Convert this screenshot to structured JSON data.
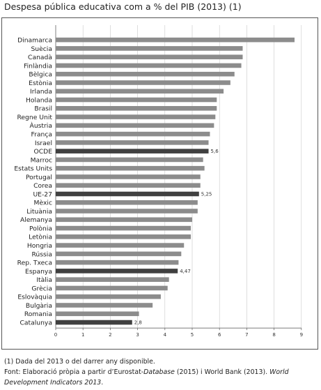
{
  "title": "Despesa pública educativa com a % del PIB (2013) (1)",
  "colors": {
    "bar": "#8c8c8c",
    "highlight": "#404040",
    "axis": "#6a6a6a"
  },
  "chart_data": {
    "type": "bar",
    "orientation": "horizontal",
    "categories": [
      "Dinamarca",
      "Suècia",
      "Canadà",
      "Finlàndia",
      "Bèlgica",
      "Estònia",
      "Irlanda",
      "Holanda",
      "Brasil",
      "Regne Unit",
      "Àustria",
      "França",
      "Israel",
      "OCDE",
      "Marroc",
      "Estats Units",
      "Portugal",
      "Corea",
      "UE-27",
      "Mèxic",
      "Lituània",
      "Alemanya",
      "Polònia",
      "Letònia",
      "Hongria",
      "Rússia",
      "Rep. Txeca",
      "Espanya",
      "Itàlia",
      "Grècia",
      "Eslovàquia",
      "Bulgària",
      "Romania",
      "Catalunya"
    ],
    "values": [
      8.75,
      6.85,
      6.85,
      6.8,
      6.55,
      6.4,
      6.15,
      5.9,
      5.9,
      5.85,
      5.8,
      5.65,
      5.6,
      5.6,
      5.4,
      5.45,
      5.3,
      5.3,
      5.25,
      5.2,
      5.2,
      5.0,
      4.95,
      4.95,
      4.7,
      4.6,
      4.5,
      4.47,
      4.15,
      4.1,
      3.85,
      3.55,
      3.05,
      2.8
    ],
    "highlighted": [
      "OCDE",
      "UE-27",
      "Espanya",
      "Catalunya"
    ],
    "data_labels": [
      {
        "category": "OCDE",
        "text": "5,6"
      },
      {
        "category": "UE-27",
        "text": "5,25"
      },
      {
        "category": "Espanya",
        "text": "4,47"
      },
      {
        "category": "Catalunya",
        "text": "2,8"
      }
    ],
    "xlim": [
      0,
      9
    ],
    "xticks": [
      "0",
      "1",
      "2",
      "3",
      "4",
      "5",
      "6",
      "7",
      "8",
      "9"
    ],
    "grid": "vertical"
  },
  "footnotes": {
    "note1": "(1) Dada del 2013 o del darrer any disponible.",
    "source_a": "Font: Elaboració pròpia a partir d’Eurostat-",
    "source_b": "Database",
    "source_c": " (2015) i World Bank (2013). ",
    "source_d": "World Development Indicators 2013",
    "source_e": "."
  }
}
